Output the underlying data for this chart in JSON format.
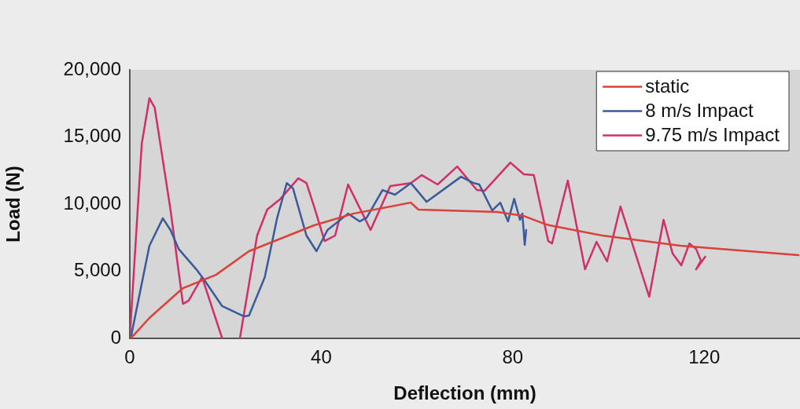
{
  "chart_data": {
    "type": "line",
    "xlabel": "Deflection (mm)",
    "ylabel": "Load (N)",
    "xlim": [
      0,
      140
    ],
    "xticks": [
      0,
      40,
      80,
      120
    ],
    "ylim": [
      0,
      20000
    ],
    "yticks": [
      0,
      {
        "value": 5000,
        "label": "5,000"
      },
      {
        "value": 10000,
        "label": "10,000"
      },
      {
        "value": 15000,
        "label": "15,000"
      },
      {
        "value": 20000,
        "label": "20,000"
      }
    ],
    "grid": false,
    "legend": "top right",
    "marker": "none",
    "line_style": "solid",
    "series": [
      {
        "name": "static",
        "color": "#d9413a",
        "x": [
          0,
          0.8,
          4.1,
          11.1,
          18,
          24.9,
          38.5,
          46.7,
          58.7,
          60.3,
          76.7,
          82.3,
          86.6,
          87.7,
          98.7,
          115,
          139.7
        ],
        "values": [
          0,
          230,
          1520,
          3740,
          4730,
          6490,
          8420,
          9290,
          10110,
          9590,
          9410,
          9120,
          8530,
          8420,
          7660,
          6900,
          6200
        ]
      },
      {
        "name": "8 m/s Impact",
        "color": "#3a5a9a",
        "x": [
          0.3,
          4.1,
          6.9,
          8.5,
          10.2,
          13.9,
          15.6,
          19.3,
          23.8,
          24.9,
          28.2,
          30.8,
          32.8,
          34.1,
          36.9,
          39,
          41.3,
          45.6,
          48,
          49.5,
          52.8,
          55.4,
          58.7,
          62,
          69.2,
          71.8,
          73,
          75.7,
          77.4,
          79,
          80.3,
          81.5,
          82,
          82.5,
          82.8
        ],
        "values": [
          200,
          6900,
          8940,
          8070,
          6660,
          5140,
          4330,
          2400,
          1640,
          1700,
          4560,
          9000,
          11570,
          11160,
          7660,
          6490,
          8070,
          9290,
          8710,
          9000,
          11050,
          10700,
          11570,
          10170,
          12040,
          11570,
          11460,
          9530,
          10110,
          8710,
          10400,
          8830,
          9290,
          6960,
          8070
        ]
      },
      {
        "name": "9.75 m/s Impact",
        "color": "#d0306a",
        "x": [
          0,
          2.5,
          4.1,
          5.2,
          8.5,
          11.1,
          12.3,
          15.1,
          19.3,
          21,
          23,
          26.6,
          28.7,
          31.5,
          35.2,
          36.9,
          38.5,
          40.7,
          42.9,
          45.6,
          50.3,
          54.4,
          58.7,
          61,
          64.3,
          68.4,
          72.5,
          74.1,
          79.5,
          82.3,
          84.4,
          87.4,
          88.2,
          91.5,
          95.1,
          97.5,
          99.7,
          102.5,
          108.5,
          111.5,
          113.4,
          115.2,
          116.9,
          118.3,
          119.3,
          118.3,
          120.2
        ],
        "values": [
          60,
          14500,
          17890,
          17190,
          9590,
          2570,
          2810,
          4560,
          0,
          null,
          0,
          7660,
          9590,
          10400,
          11920,
          11570,
          9820,
          7250,
          7660,
          11460,
          8070,
          11340,
          11570,
          12160,
          11460,
          12800,
          11050,
          10990,
          13090,
          12220,
          12160,
          7250,
          7070,
          11750,
          5140,
          7190,
          5730,
          9820,
          3100,
          8830,
          6310,
          5440,
          7070,
          6660,
          5790,
          5140,
          6080
        ]
      }
    ]
  }
}
